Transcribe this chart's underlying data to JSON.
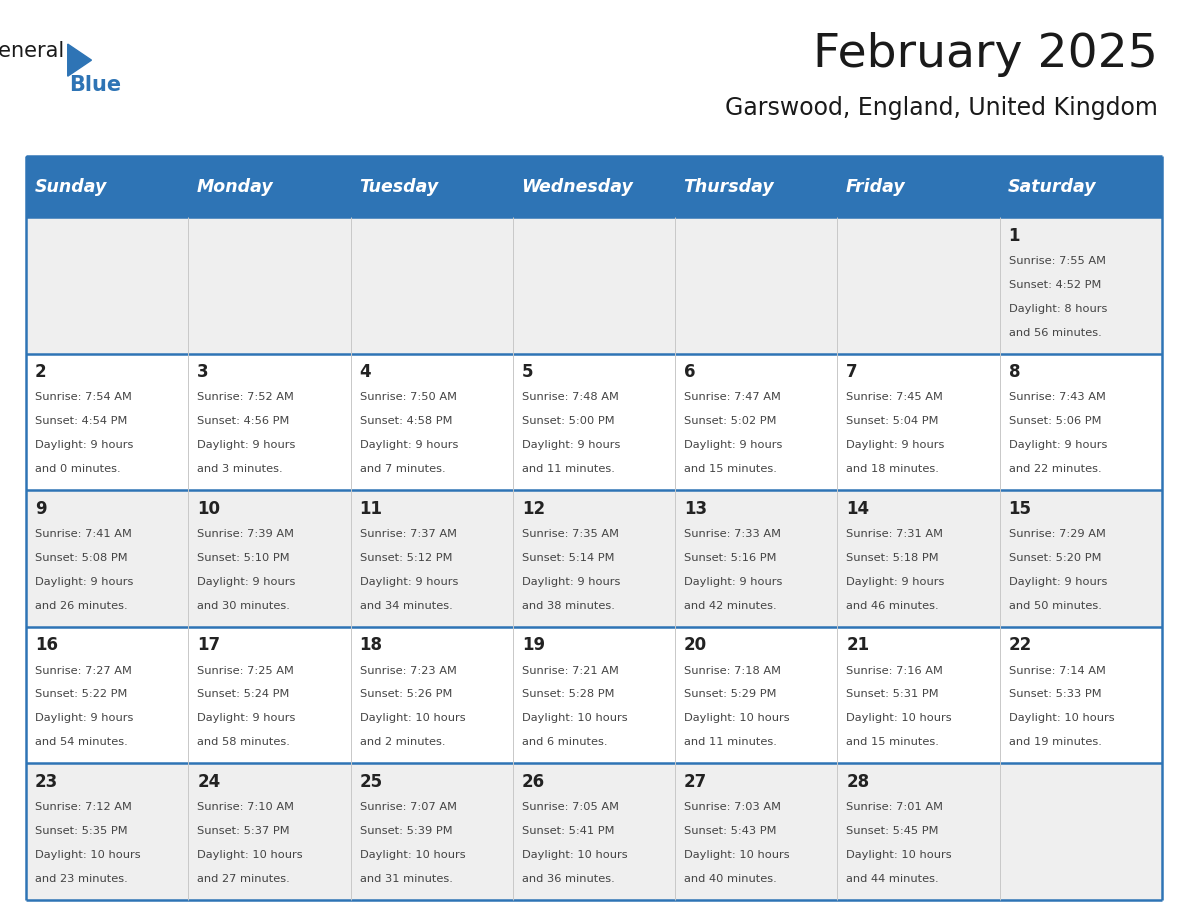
{
  "title": "February 2025",
  "subtitle": "Garswood, England, United Kingdom",
  "header_bg": "#2E74B5",
  "header_text_color": "#FFFFFF",
  "day_names": [
    "Sunday",
    "Monday",
    "Tuesday",
    "Wednesday",
    "Thursday",
    "Friday",
    "Saturday"
  ],
  "row_bg_even": "#FFFFFF",
  "row_bg_odd": "#EFEFEF",
  "border_color": "#2E74B5",
  "text_color": "#444444",
  "num_rows": 5,
  "logo_general_color": "#1A1A1A",
  "logo_blue_color": "#2E74B5",
  "days": [
    {
      "day": 1,
      "col": 6,
      "row": 0,
      "sunrise": "7:55 AM",
      "sunset": "4:52 PM",
      "daylight_h": "8 hours",
      "daylight_m": "56 minutes"
    },
    {
      "day": 2,
      "col": 0,
      "row": 1,
      "sunrise": "7:54 AM",
      "sunset": "4:54 PM",
      "daylight_h": "9 hours",
      "daylight_m": "0 minutes"
    },
    {
      "day": 3,
      "col": 1,
      "row": 1,
      "sunrise": "7:52 AM",
      "sunset": "4:56 PM",
      "daylight_h": "9 hours",
      "daylight_m": "3 minutes"
    },
    {
      "day": 4,
      "col": 2,
      "row": 1,
      "sunrise": "7:50 AM",
      "sunset": "4:58 PM",
      "daylight_h": "9 hours",
      "daylight_m": "7 minutes"
    },
    {
      "day": 5,
      "col": 3,
      "row": 1,
      "sunrise": "7:48 AM",
      "sunset": "5:00 PM",
      "daylight_h": "9 hours",
      "daylight_m": "11 minutes"
    },
    {
      "day": 6,
      "col": 4,
      "row": 1,
      "sunrise": "7:47 AM",
      "sunset": "5:02 PM",
      "daylight_h": "9 hours",
      "daylight_m": "15 minutes"
    },
    {
      "day": 7,
      "col": 5,
      "row": 1,
      "sunrise": "7:45 AM",
      "sunset": "5:04 PM",
      "daylight_h": "9 hours",
      "daylight_m": "18 minutes"
    },
    {
      "day": 8,
      "col": 6,
      "row": 1,
      "sunrise": "7:43 AM",
      "sunset": "5:06 PM",
      "daylight_h": "9 hours",
      "daylight_m": "22 minutes"
    },
    {
      "day": 9,
      "col": 0,
      "row": 2,
      "sunrise": "7:41 AM",
      "sunset": "5:08 PM",
      "daylight_h": "9 hours",
      "daylight_m": "26 minutes"
    },
    {
      "day": 10,
      "col": 1,
      "row": 2,
      "sunrise": "7:39 AM",
      "sunset": "5:10 PM",
      "daylight_h": "9 hours",
      "daylight_m": "30 minutes"
    },
    {
      "day": 11,
      "col": 2,
      "row": 2,
      "sunrise": "7:37 AM",
      "sunset": "5:12 PM",
      "daylight_h": "9 hours",
      "daylight_m": "34 minutes"
    },
    {
      "day": 12,
      "col": 3,
      "row": 2,
      "sunrise": "7:35 AM",
      "sunset": "5:14 PM",
      "daylight_h": "9 hours",
      "daylight_m": "38 minutes"
    },
    {
      "day": 13,
      "col": 4,
      "row": 2,
      "sunrise": "7:33 AM",
      "sunset": "5:16 PM",
      "daylight_h": "9 hours",
      "daylight_m": "42 minutes"
    },
    {
      "day": 14,
      "col": 5,
      "row": 2,
      "sunrise": "7:31 AM",
      "sunset": "5:18 PM",
      "daylight_h": "9 hours",
      "daylight_m": "46 minutes"
    },
    {
      "day": 15,
      "col": 6,
      "row": 2,
      "sunrise": "7:29 AM",
      "sunset": "5:20 PM",
      "daylight_h": "9 hours",
      "daylight_m": "50 minutes"
    },
    {
      "day": 16,
      "col": 0,
      "row": 3,
      "sunrise": "7:27 AM",
      "sunset": "5:22 PM",
      "daylight_h": "9 hours",
      "daylight_m": "54 minutes"
    },
    {
      "day": 17,
      "col": 1,
      "row": 3,
      "sunrise": "7:25 AM",
      "sunset": "5:24 PM",
      "daylight_h": "9 hours",
      "daylight_m": "58 minutes"
    },
    {
      "day": 18,
      "col": 2,
      "row": 3,
      "sunrise": "7:23 AM",
      "sunset": "5:26 PM",
      "daylight_h": "10 hours",
      "daylight_m": "2 minutes"
    },
    {
      "day": 19,
      "col": 3,
      "row": 3,
      "sunrise": "7:21 AM",
      "sunset": "5:28 PM",
      "daylight_h": "10 hours",
      "daylight_m": "6 minutes"
    },
    {
      "day": 20,
      "col": 4,
      "row": 3,
      "sunrise": "7:18 AM",
      "sunset": "5:29 PM",
      "daylight_h": "10 hours",
      "daylight_m": "11 minutes"
    },
    {
      "day": 21,
      "col": 5,
      "row": 3,
      "sunrise": "7:16 AM",
      "sunset": "5:31 PM",
      "daylight_h": "10 hours",
      "daylight_m": "15 minutes"
    },
    {
      "day": 22,
      "col": 6,
      "row": 3,
      "sunrise": "7:14 AM",
      "sunset": "5:33 PM",
      "daylight_h": "10 hours",
      "daylight_m": "19 minutes"
    },
    {
      "day": 23,
      "col": 0,
      "row": 4,
      "sunrise": "7:12 AM",
      "sunset": "5:35 PM",
      "daylight_h": "10 hours",
      "daylight_m": "23 minutes"
    },
    {
      "day": 24,
      "col": 1,
      "row": 4,
      "sunrise": "7:10 AM",
      "sunset": "5:37 PM",
      "daylight_h": "10 hours",
      "daylight_m": "27 minutes"
    },
    {
      "day": 25,
      "col": 2,
      "row": 4,
      "sunrise": "7:07 AM",
      "sunset": "5:39 PM",
      "daylight_h": "10 hours",
      "daylight_m": "31 minutes"
    },
    {
      "day": 26,
      "col": 3,
      "row": 4,
      "sunrise": "7:05 AM",
      "sunset": "5:41 PM",
      "daylight_h": "10 hours",
      "daylight_m": "36 minutes"
    },
    {
      "day": 27,
      "col": 4,
      "row": 4,
      "sunrise": "7:03 AM",
      "sunset": "5:43 PM",
      "daylight_h": "10 hours",
      "daylight_m": "40 minutes"
    },
    {
      "day": 28,
      "col": 5,
      "row": 4,
      "sunrise": "7:01 AM",
      "sunset": "5:45 PM",
      "daylight_h": "10 hours",
      "daylight_m": "44 minutes"
    }
  ]
}
